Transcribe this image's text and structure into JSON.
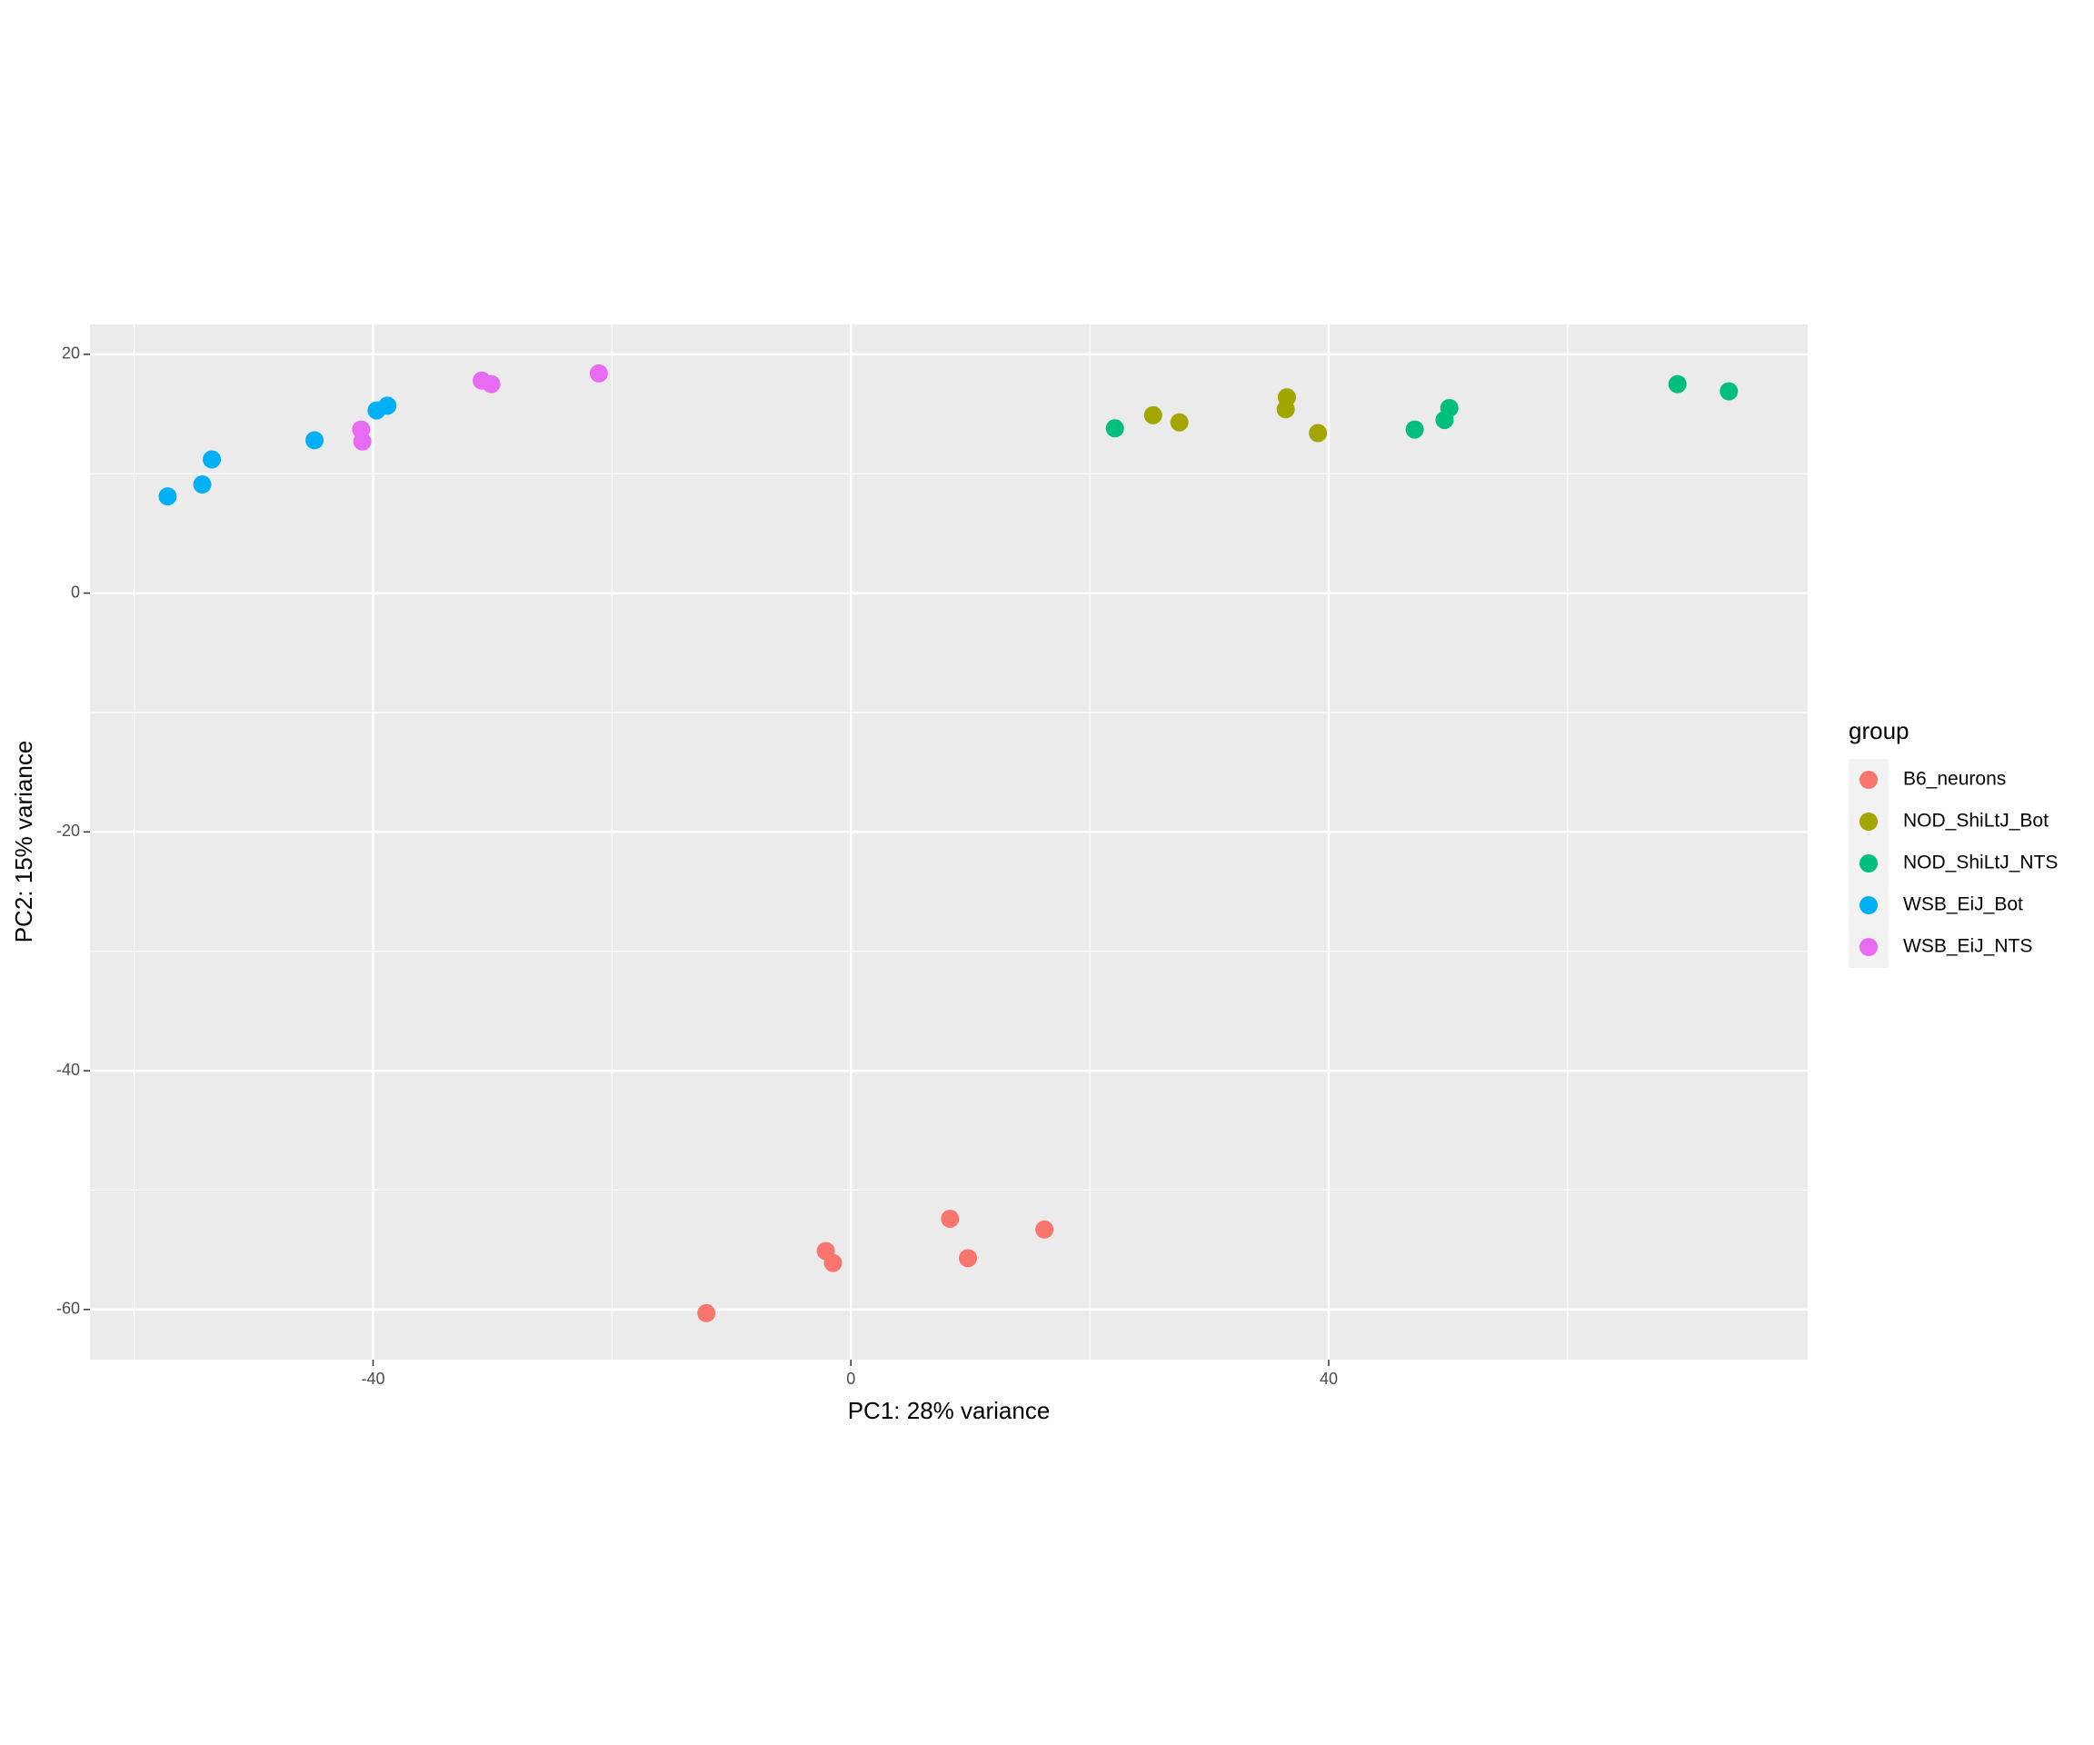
{
  "chart_data": {
    "type": "scatter",
    "x_label": "PC1: 28% variance",
    "y_label": "PC2: 15% variance",
    "legend_title": "group",
    "legend_position": "right",
    "grid": true,
    "xlim": [
      -63.7,
      80.1
    ],
    "ylim": [
      -64.2,
      22.5
    ],
    "xticks": [
      -40,
      0,
      40
    ],
    "yticks": [
      -60,
      -40,
      -20,
      0,
      20
    ],
    "x_minor_grid": [
      -60,
      -20,
      20,
      60
    ],
    "y_minor_grid": [
      -50,
      -30,
      -10,
      10
    ],
    "series": [
      {
        "name": "B6_neurons",
        "color": "#f8766d",
        "x": [
          -12.1,
          -2.1,
          -1.5,
          8.3,
          9.8,
          16.2
        ],
        "values": [
          -60.3,
          -55.1,
          -56.1,
          -52.4,
          -55.7,
          -53.3
        ]
      },
      {
        "name": "NOD_ShiLtJ_Bot",
        "color": "#a3a500",
        "x": [
          25.3,
          27.5,
          36.5,
          36.4,
          39.1
        ],
        "values": [
          14.9,
          14.3,
          16.4,
          15.4,
          13.4
        ]
      },
      {
        "name": "NOD_ShiLtJ_NTS",
        "color": "#00bf7d",
        "x": [
          22.1,
          47.2,
          49.7,
          50.1,
          69.2,
          73.5
        ],
        "values": [
          13.8,
          13.7,
          14.5,
          15.5,
          17.5,
          16.9
        ]
      },
      {
        "name": "WSB_EiJ_Bot",
        "color": "#00b0f6",
        "x": [
          -57.2,
          -54.3,
          -53.5,
          -44.9,
          -39.7,
          -38.8
        ],
        "values": [
          8.1,
          9.1,
          11.2,
          12.8,
          15.3,
          15.7
        ]
      },
      {
        "name": "WSB_EiJ_NTS",
        "color": "#e76bf3",
        "x": [
          -41.0,
          -40.9,
          -30.9,
          -30.1,
          -21.1
        ],
        "values": [
          13.7,
          12.7,
          17.8,
          17.5,
          18.4
        ]
      }
    ]
  }
}
